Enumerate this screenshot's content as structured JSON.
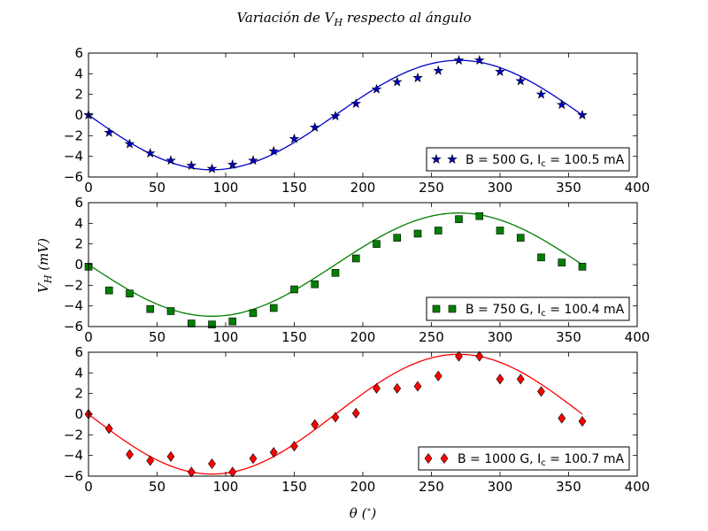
{
  "figure": {
    "title": "Variación de V_H respecto al ángulo",
    "title_main": "Variación de ",
    "title_var": "V",
    "title_sub": "H",
    "title_rest": " respecto al ángulo",
    "xlabel_main": "θ (",
    "xlabel_deg": "∘",
    "xlabel_close": ")",
    "ylabel_main": "V",
    "ylabel_sub": "H",
    "ylabel_unit": " (mV)"
  },
  "chart_data": [
    {
      "type": "scatter",
      "title": "",
      "xlim": [
        0,
        400
      ],
      "ylim": [
        -6,
        6
      ],
      "xticks": [
        0,
        50,
        100,
        150,
        200,
        250,
        300,
        350,
        400
      ],
      "yticks": [
        -6,
        -4,
        -2,
        0,
        2,
        4,
        6
      ],
      "grid": false,
      "legend_position": "bottom-right",
      "color": "#0000cc",
      "marker": "star",
      "legend": {
        "main": "B = 500 G, I",
        "sub": "c",
        "rest": " = 100.5 mA"
      },
      "fit_amplitude": 5.3,
      "x": [
        0,
        15,
        30,
        45,
        60,
        75,
        90,
        105,
        120,
        135,
        150,
        165,
        180,
        195,
        210,
        225,
        240,
        255,
        270,
        285,
        300,
        315,
        330,
        345,
        360
      ],
      "y": [
        0.0,
        -1.7,
        -2.8,
        -3.7,
        -4.4,
        -4.9,
        -5.2,
        -4.8,
        -4.4,
        -3.5,
        -2.3,
        -1.2,
        -0.1,
        1.1,
        2.5,
        3.2,
        3.6,
        4.3,
        5.3,
        5.3,
        4.2,
        3.3,
        2.0,
        1.0,
        0.0
      ]
    },
    {
      "type": "scatter",
      "title": "",
      "xlim": [
        0,
        400
      ],
      "ylim": [
        -6,
        6
      ],
      "xticks": [
        0,
        50,
        100,
        150,
        200,
        250,
        300,
        350,
        400
      ],
      "yticks": [
        -6,
        -4,
        -2,
        0,
        2,
        4,
        6
      ],
      "grid": false,
      "legend_position": "bottom-right",
      "color": "#008000",
      "marker": "square",
      "legend": {
        "main": "B = 750 G, I",
        "sub": "c",
        "rest": " = 100.4 mA"
      },
      "fit_amplitude": 5.0,
      "x": [
        0,
        15,
        30,
        45,
        60,
        75,
        90,
        105,
        120,
        135,
        150,
        165,
        180,
        195,
        210,
        225,
        240,
        255,
        270,
        285,
        300,
        315,
        330,
        345,
        360
      ],
      "y": [
        -0.2,
        -2.5,
        -2.8,
        -4.3,
        -4.5,
        -5.7,
        -5.8,
        -5.5,
        -4.7,
        -4.2,
        -2.4,
        -1.9,
        -0.8,
        0.6,
        2.0,
        2.6,
        3.0,
        3.3,
        4.4,
        4.7,
        3.3,
        2.6,
        0.7,
        0.2,
        -0.2
      ]
    },
    {
      "type": "scatter",
      "title": "",
      "xlim": [
        0,
        400
      ],
      "ylim": [
        -6,
        6
      ],
      "xticks": [
        0,
        50,
        100,
        150,
        200,
        250,
        300,
        350,
        400
      ],
      "yticks": [
        -6,
        -4,
        -2,
        0,
        2,
        4,
        6
      ],
      "grid": false,
      "legend_position": "bottom-right",
      "color": "#ff0000",
      "marker": "diamond",
      "legend": {
        "main": "B = 1000 G, I",
        "sub": "c",
        "rest": " = 100.7 mA"
      },
      "fit_amplitude": 5.8,
      "x": [
        0,
        15,
        30,
        45,
        60,
        75,
        90,
        105,
        120,
        135,
        150,
        165,
        180,
        195,
        210,
        225,
        240,
        255,
        270,
        285,
        300,
        315,
        330,
        345,
        360
      ],
      "y": [
        0.0,
        -1.4,
        -3.9,
        -4.5,
        -4.1,
        -5.6,
        -4.8,
        -5.6,
        -4.3,
        -3.7,
        -3.1,
        -1.0,
        -0.3,
        0.1,
        2.5,
        2.5,
        2.7,
        3.7,
        5.6,
        5.6,
        3.4,
        3.4,
        2.2,
        -0.4,
        -0.7
      ]
    }
  ]
}
